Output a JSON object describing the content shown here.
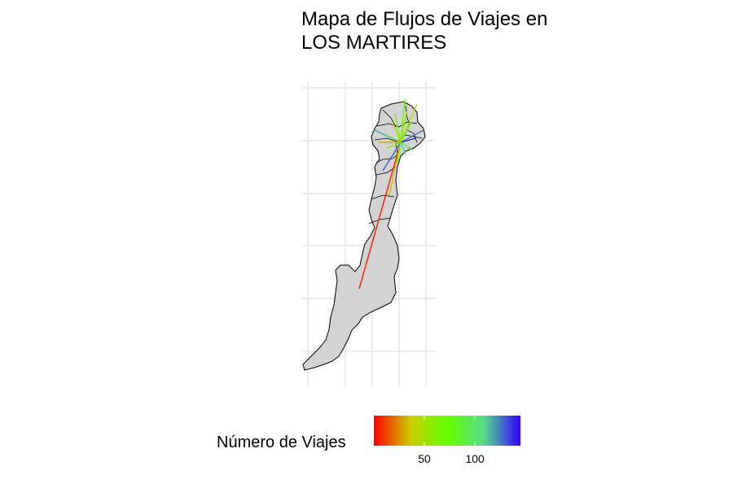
{
  "title": "Mapa de Flujos de Viajes en\nLOS MARTIRES",
  "legend": {
    "title": "Número de Viajes",
    "min": 0,
    "max": 145,
    "ticks": [
      {
        "value": 50,
        "label": "50"
      },
      {
        "value": 100,
        "label": "100"
      }
    ],
    "colors": [
      "#ff0000",
      "#cccc00",
      "#66ff00",
      "#55dd88",
      "#3300ff"
    ]
  },
  "map": {
    "fill": "#d3d3d3",
    "stroke": "#000000",
    "grid_color": "#ebebeb",
    "origin": "LOS MARTIRES",
    "flow_count": 18
  }
}
